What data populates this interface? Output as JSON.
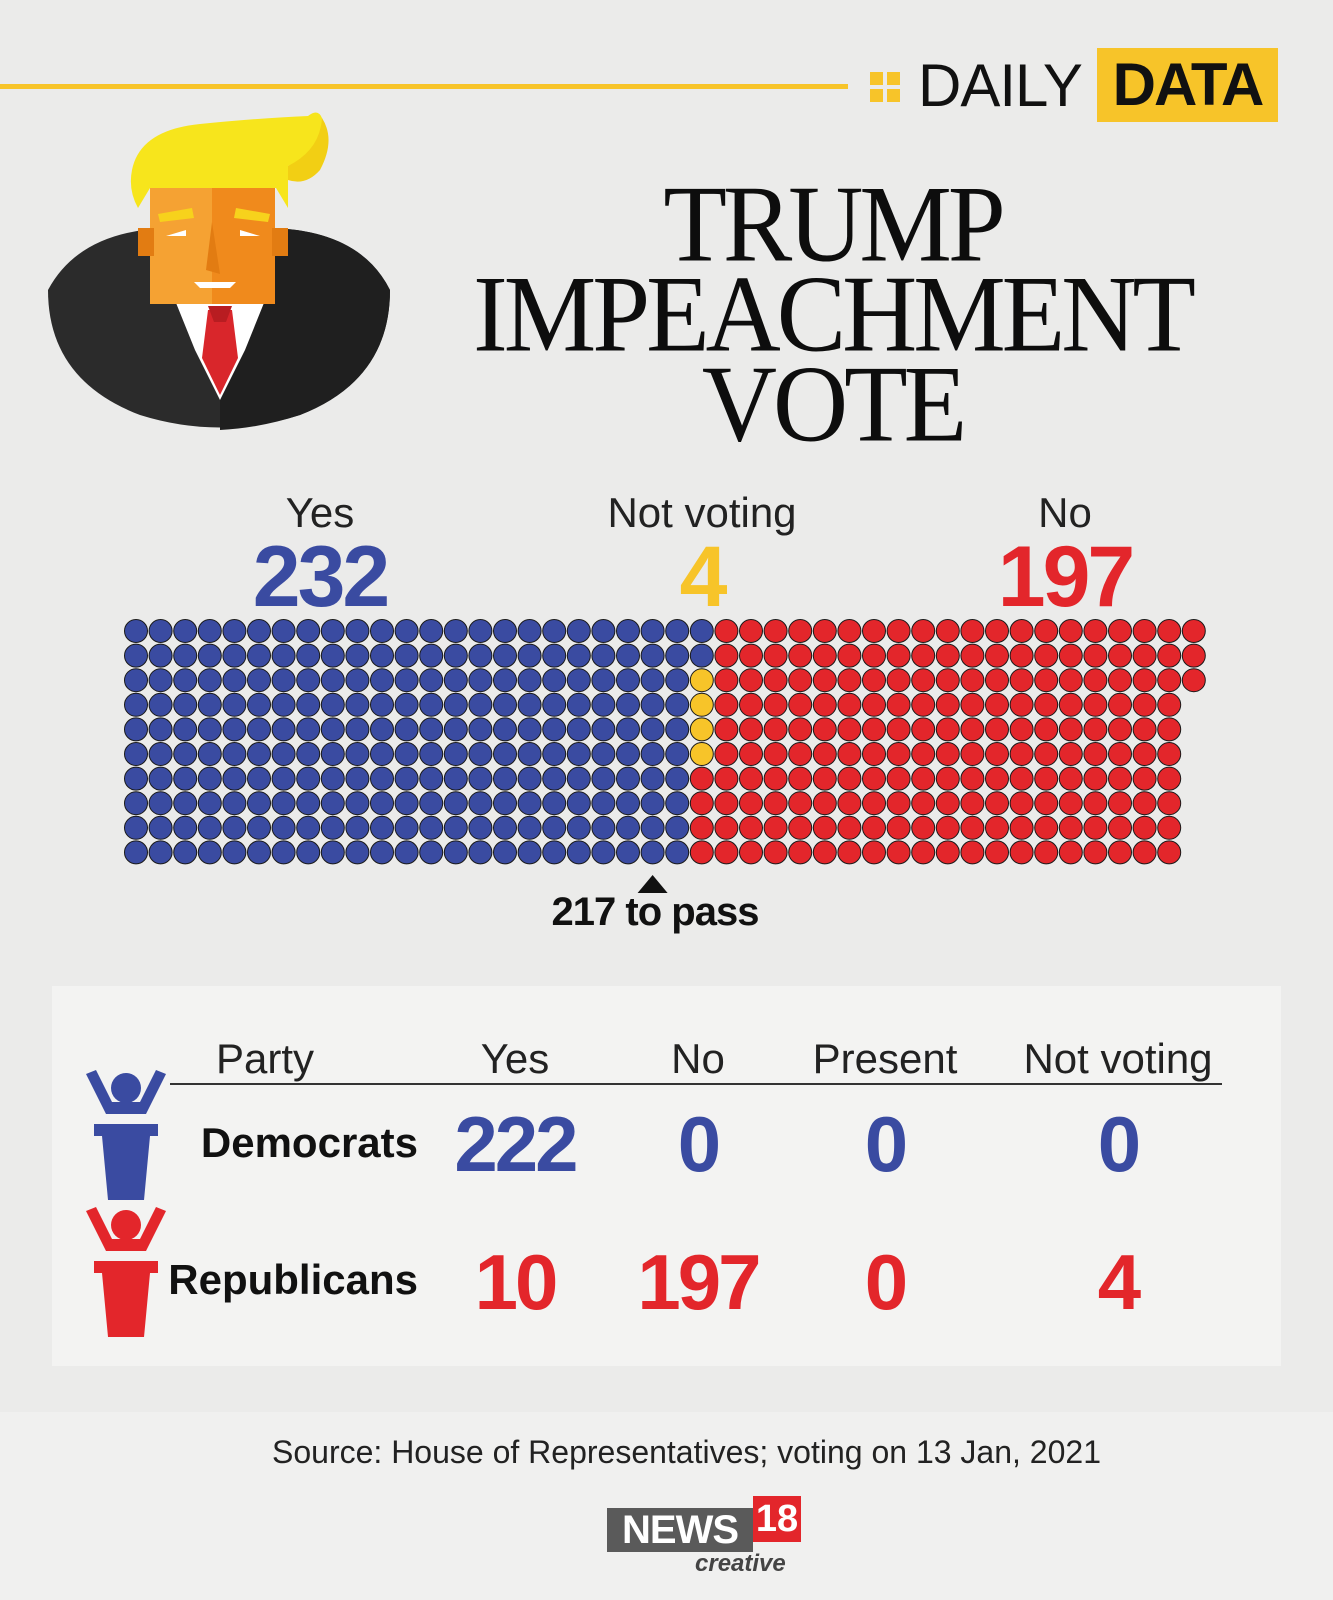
{
  "brand": {
    "daily": "DAILY",
    "data": "DATA"
  },
  "title": {
    "line1": "TRUMP",
    "line2": "IMPEACHMENT",
    "line3": "VOTE"
  },
  "chart_data": {
    "type": "waffle",
    "total_seats": 433,
    "groups": [
      {
        "name": "Yes",
        "value": 232,
        "color": "#3a4ba1"
      },
      {
        "name": "Not voting",
        "value": 4,
        "color": "#f7c429"
      },
      {
        "name": "No",
        "value": 197,
        "color": "#e3262b"
      }
    ],
    "threshold": {
      "value": 217,
      "label": "217 to pass"
    }
  },
  "table": {
    "headers": [
      "Party",
      "Yes",
      "No",
      "Present",
      "Not voting"
    ],
    "rows": [
      {
        "party": "Democrats",
        "yes": "222",
        "no": "0",
        "present": "0",
        "not_voting": "0",
        "color": "#3a4ba1"
      },
      {
        "party": "Republicans",
        "yes": "10",
        "no": "197",
        "present": "0",
        "not_voting": "4",
        "color": "#e3262b"
      }
    ]
  },
  "footer": {
    "source": "Source: House of Representatives; voting on 13 Jan, 2021",
    "logo_news": "NEWS",
    "logo_18": "18",
    "logo_creative": "creative"
  }
}
